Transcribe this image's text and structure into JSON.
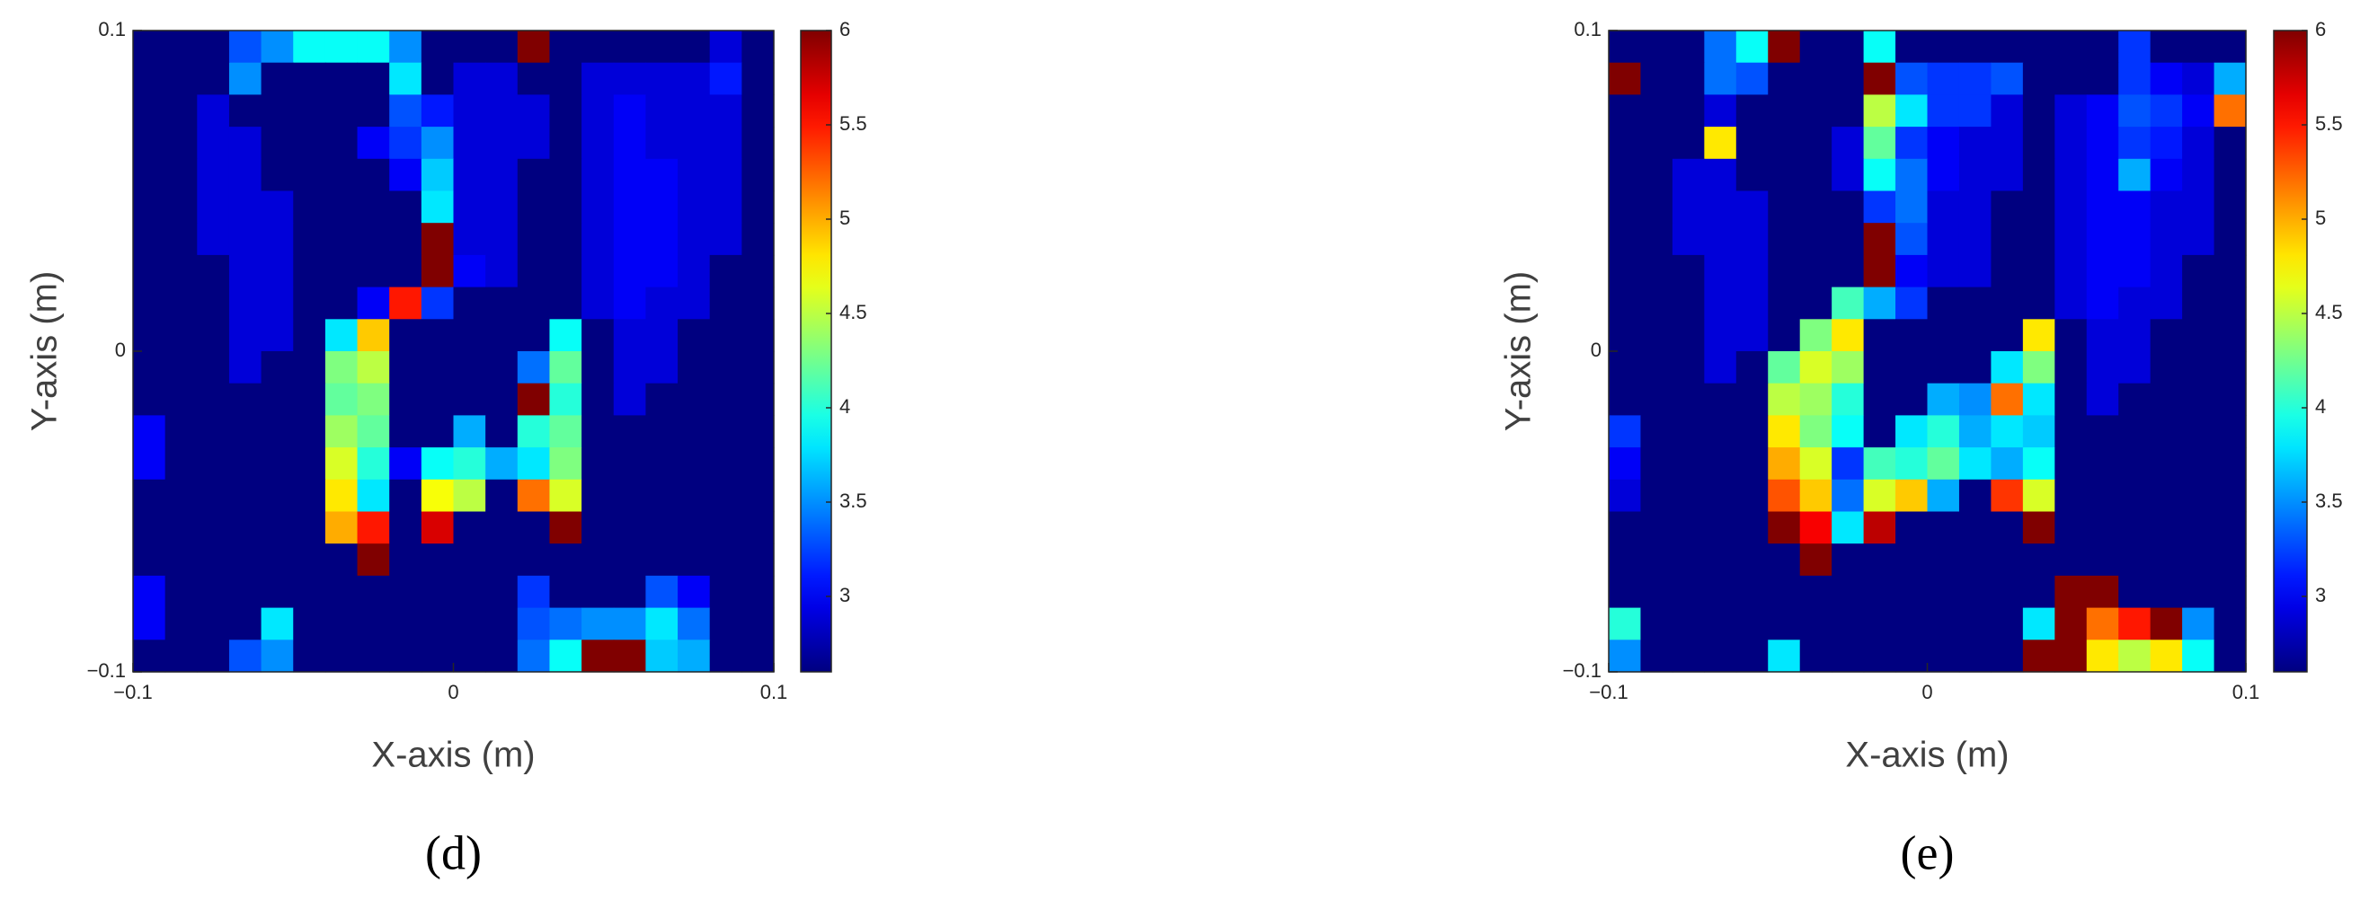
{
  "chart_data": [
    {
      "type": "heatmap",
      "caption": "(d)",
      "xlabel": "X-axis (m)",
      "ylabel": "Y-axis (m)",
      "xlim": [
        -0.1,
        0.1
      ],
      "ylim": [
        -0.1,
        0.1
      ],
      "xticks": [
        {
          "value": -0.1,
          "label": "−0.1"
        },
        0,
        0.1
      ],
      "yticks": [
        {
          "value": -0.1,
          "label": "−0.1"
        },
        0,
        0.1
      ],
      "colormap": "jet",
      "clim": [
        2.6,
        6
      ],
      "cticks": [
        3,
        3.5,
        4,
        4.5,
        5,
        5.5,
        6
      ],
      "z": [
        [
          2.6,
          2.6,
          2.6,
          3.3,
          3.5,
          3.9,
          3.9,
          3.9,
          3.5,
          2.6,
          2.6,
          2.6,
          6,
          2.6,
          2.6,
          2.6,
          2.6,
          2.6,
          2.9,
          2.6
        ],
        [
          2.6,
          2.6,
          2.6,
          3.5,
          2.6,
          2.6,
          2.6,
          2.6,
          3.8,
          2.6,
          2.9,
          2.9,
          2.6,
          2.6,
          2.9,
          2.9,
          2.9,
          2.9,
          3.1,
          2.6
        ],
        [
          2.6,
          2.6,
          2.9,
          2.6,
          2.6,
          2.6,
          2.6,
          2.6,
          3.3,
          3.1,
          2.9,
          2.9,
          2.9,
          2.6,
          2.9,
          3.0,
          2.9,
          2.9,
          2.9,
          2.6
        ],
        [
          2.6,
          2.6,
          2.9,
          2.9,
          2.6,
          2.6,
          2.6,
          3.0,
          3.2,
          3.5,
          2.9,
          2.9,
          2.9,
          2.6,
          2.9,
          3.0,
          2.9,
          2.9,
          2.9,
          2.6
        ],
        [
          2.6,
          2.6,
          2.9,
          2.9,
          2.6,
          2.6,
          2.6,
          2.6,
          3.0,
          3.7,
          2.9,
          2.9,
          2.6,
          2.6,
          2.9,
          3.0,
          3.0,
          2.9,
          2.9,
          2.6
        ],
        [
          2.6,
          2.6,
          2.9,
          2.9,
          2.9,
          2.6,
          2.6,
          2.6,
          2.6,
          3.8,
          2.9,
          2.9,
          2.6,
          2.6,
          2.9,
          3.0,
          3.0,
          2.9,
          2.9,
          2.6
        ],
        [
          2.6,
          2.6,
          2.9,
          2.9,
          2.9,
          2.6,
          2.6,
          2.6,
          2.6,
          6,
          2.9,
          2.9,
          2.6,
          2.6,
          2.9,
          3.0,
          3.0,
          2.9,
          2.9,
          2.6
        ],
        [
          2.6,
          2.6,
          2.6,
          2.9,
          2.9,
          2.6,
          2.6,
          2.6,
          2.6,
          6,
          3.0,
          2.9,
          2.6,
          2.6,
          2.9,
          3.0,
          3.0,
          2.9,
          2.6,
          2.6
        ],
        [
          2.6,
          2.6,
          2.6,
          2.9,
          2.9,
          2.6,
          2.6,
          3.0,
          5.5,
          3.2,
          2.6,
          2.6,
          2.6,
          2.6,
          2.9,
          3.0,
          2.9,
          2.9,
          2.6,
          2.6
        ],
        [
          2.6,
          2.6,
          2.6,
          2.9,
          2.9,
          2.6,
          3.8,
          4.9,
          2.6,
          2.6,
          2.6,
          2.6,
          2.6,
          3.9,
          2.6,
          2.9,
          2.9,
          2.6,
          2.6,
          2.6
        ],
        [
          2.6,
          2.6,
          2.6,
          2.9,
          2.6,
          2.6,
          4.3,
          4.5,
          2.6,
          2.6,
          2.6,
          2.6,
          3.4,
          4.2,
          2.6,
          2.9,
          2.9,
          2.6,
          2.6,
          2.6
        ],
        [
          2.6,
          2.6,
          2.6,
          2.6,
          2.6,
          2.6,
          4.2,
          4.3,
          2.6,
          2.6,
          2.6,
          2.6,
          6,
          4.0,
          2.6,
          2.9,
          2.6,
          2.6,
          2.6,
          2.6
        ],
        [
          3.0,
          2.6,
          2.6,
          2.6,
          2.6,
          2.6,
          4.4,
          4.2,
          2.6,
          2.6,
          3.6,
          2.6,
          4.0,
          4.2,
          2.6,
          2.6,
          2.6,
          2.6,
          2.6,
          2.6
        ],
        [
          3.0,
          2.6,
          2.6,
          2.6,
          2.6,
          2.6,
          4.6,
          4.0,
          3.0,
          3.9,
          4.0,
          3.6,
          3.8,
          4.3,
          2.6,
          2.6,
          2.6,
          2.6,
          2.6,
          2.6
        ],
        [
          2.6,
          2.6,
          2.6,
          2.6,
          2.6,
          2.6,
          4.8,
          3.8,
          2.6,
          4.7,
          4.5,
          2.6,
          5.2,
          4.6,
          2.6,
          2.6,
          2.6,
          2.6,
          2.6,
          2.6
        ],
        [
          2.6,
          2.6,
          2.6,
          2.6,
          2.6,
          2.6,
          5.0,
          5.5,
          2.6,
          5.7,
          2.6,
          2.6,
          2.6,
          6,
          2.6,
          2.6,
          2.6,
          2.6,
          2.6,
          2.6
        ],
        [
          2.6,
          2.6,
          2.6,
          2.6,
          2.6,
          2.6,
          2.6,
          6,
          2.6,
          2.6,
          2.6,
          2.6,
          2.6,
          2.6,
          2.6,
          2.6,
          2.6,
          2.6,
          2.6,
          2.6
        ],
        [
          3.0,
          2.6,
          2.6,
          2.6,
          2.6,
          2.6,
          2.6,
          2.6,
          2.6,
          2.6,
          2.6,
          2.6,
          3.2,
          2.6,
          2.6,
          2.6,
          3.3,
          3.0,
          2.6,
          2.6
        ],
        [
          3.0,
          2.6,
          2.6,
          2.6,
          3.8,
          2.6,
          2.6,
          2.6,
          2.6,
          2.6,
          2.6,
          2.6,
          3.3,
          3.4,
          3.5,
          3.5,
          3.8,
          3.4,
          2.6,
          2.6
        ],
        [
          2.6,
          2.6,
          2.6,
          3.3,
          3.5,
          2.6,
          2.6,
          2.6,
          2.6,
          2.6,
          2.6,
          2.6,
          3.4,
          3.9,
          6,
          6,
          3.7,
          3.6,
          2.6,
          2.6
        ]
      ]
    },
    {
      "type": "heatmap",
      "caption": "(e)",
      "xlabel": "X-axis (m)",
      "ylabel": "Y-axis (m)",
      "xlim": [
        -0.1,
        0.1
      ],
      "ylim": [
        -0.1,
        0.1
      ],
      "xticks": [
        {
          "value": -0.1,
          "label": "−0.1"
        },
        0,
        0.1
      ],
      "yticks": [
        {
          "value": -0.1,
          "label": "−0.1"
        },
        0,
        0.1
      ],
      "colormap": "jet",
      "clim": [
        2.6,
        6
      ],
      "cticks": [
        3,
        3.5,
        4,
        4.5,
        5,
        5.5,
        6
      ],
      "z": [
        [
          2.6,
          2.6,
          2.6,
          3.4,
          3.9,
          6,
          2.6,
          2.6,
          3.9,
          2.6,
          2.6,
          2.6,
          2.6,
          2.6,
          2.6,
          2.6,
          3.2,
          2.6,
          2.6,
          2.6
        ],
        [
          6,
          2.6,
          2.6,
          3.4,
          3.3,
          2.6,
          2.6,
          2.6,
          6,
          3.3,
          3.2,
          3.2,
          3.3,
          2.6,
          2.6,
          2.6,
          3.2,
          3.0,
          2.9,
          3.6
        ],
        [
          2.6,
          2.6,
          2.6,
          2.9,
          2.6,
          2.6,
          2.6,
          2.6,
          4.5,
          3.8,
          3.2,
          3.2,
          2.9,
          2.6,
          2.9,
          3.0,
          3.3,
          3.2,
          3.0,
          5.2
        ],
        [
          2.6,
          2.6,
          2.6,
          4.8,
          2.6,
          2.6,
          2.6,
          2.9,
          4.2,
          3.2,
          3.0,
          2.9,
          2.9,
          2.6,
          2.9,
          3.0,
          3.2,
          3.1,
          2.9,
          2.6
        ],
        [
          2.6,
          2.6,
          2.9,
          2.9,
          2.6,
          2.6,
          2.6,
          2.9,
          3.9,
          3.4,
          3.0,
          2.9,
          2.9,
          2.6,
          2.9,
          3.0,
          3.6,
          3.0,
          2.9,
          2.6
        ],
        [
          2.6,
          2.6,
          2.9,
          2.9,
          2.9,
          2.6,
          2.6,
          2.6,
          3.2,
          3.4,
          2.9,
          2.9,
          2.6,
          2.6,
          2.9,
          3.0,
          3.0,
          2.9,
          2.9,
          2.6
        ],
        [
          2.6,
          2.6,
          2.9,
          2.9,
          2.9,
          2.6,
          2.6,
          2.6,
          6,
          3.3,
          2.9,
          2.9,
          2.6,
          2.6,
          2.9,
          3.0,
          3.0,
          2.9,
          2.9,
          2.6
        ],
        [
          2.6,
          2.6,
          2.6,
          2.9,
          2.9,
          2.6,
          2.6,
          2.6,
          6,
          3.0,
          2.9,
          2.9,
          2.6,
          2.6,
          2.9,
          3.0,
          3.0,
          2.9,
          2.6,
          2.6
        ],
        [
          2.6,
          2.6,
          2.6,
          2.9,
          2.9,
          2.6,
          2.6,
          4.1,
          3.6,
          3.2,
          2.6,
          2.6,
          2.6,
          2.6,
          2.9,
          3.0,
          2.9,
          2.9,
          2.6,
          2.6
        ],
        [
          2.6,
          2.6,
          2.6,
          2.9,
          2.9,
          2.6,
          4.3,
          4.8,
          2.6,
          2.6,
          2.6,
          2.6,
          2.6,
          4.8,
          2.6,
          2.9,
          2.9,
          2.6,
          2.6,
          2.6
        ],
        [
          2.6,
          2.6,
          2.6,
          2.9,
          2.6,
          4.2,
          4.6,
          4.4,
          2.6,
          2.6,
          2.6,
          2.6,
          3.8,
          4.3,
          2.6,
          2.9,
          2.9,
          2.6,
          2.6,
          2.6
        ],
        [
          2.6,
          2.6,
          2.6,
          2.6,
          2.6,
          4.5,
          4.4,
          4.0,
          2.6,
          2.6,
          3.6,
          3.5,
          5.2,
          3.8,
          2.6,
          2.9,
          2.6,
          2.6,
          2.6,
          2.6
        ],
        [
          3.2,
          2.6,
          2.6,
          2.6,
          2.6,
          4.8,
          4.3,
          3.9,
          2.6,
          3.8,
          4.0,
          3.6,
          3.8,
          3.7,
          2.6,
          2.6,
          2.6,
          2.6,
          2.6,
          2.6
        ],
        [
          3.0,
          2.6,
          2.6,
          2.6,
          2.6,
          5.0,
          4.6,
          3.2,
          4.1,
          4.0,
          4.2,
          3.8,
          3.6,
          3.9,
          2.6,
          2.6,
          2.6,
          2.6,
          2.6,
          2.6
        ],
        [
          2.9,
          2.6,
          2.6,
          2.6,
          2.6,
          5.3,
          4.9,
          3.4,
          4.6,
          4.9,
          3.6,
          2.6,
          5.4,
          4.6,
          2.6,
          2.6,
          2.6,
          2.6,
          2.6,
          2.6
        ],
        [
          2.6,
          2.6,
          2.6,
          2.6,
          2.6,
          6,
          5.6,
          3.8,
          5.8,
          2.6,
          2.6,
          2.6,
          2.6,
          6,
          2.6,
          2.6,
          2.6,
          2.6,
          2.6,
          2.6
        ],
        [
          2.6,
          2.6,
          2.6,
          2.6,
          2.6,
          2.6,
          6,
          2.6,
          2.6,
          2.6,
          2.6,
          2.6,
          2.6,
          2.6,
          2.6,
          2.6,
          2.6,
          2.6,
          2.6,
          2.6
        ],
        [
          2.6,
          2.6,
          2.6,
          2.6,
          2.6,
          2.6,
          2.6,
          2.6,
          2.6,
          2.6,
          2.6,
          2.6,
          2.6,
          2.6,
          6,
          6,
          2.6,
          2.6,
          2.6,
          2.6
        ],
        [
          4.0,
          2.6,
          2.6,
          2.6,
          2.6,
          2.6,
          2.6,
          2.6,
          2.6,
          2.6,
          2.6,
          2.6,
          2.6,
          3.8,
          6,
          5.2,
          5.5,
          6,
          3.5,
          2.6
        ],
        [
          3.5,
          2.6,
          2.6,
          2.6,
          2.6,
          3.8,
          2.6,
          2.6,
          2.6,
          2.6,
          2.6,
          2.6,
          2.6,
          6,
          6,
          4.8,
          4.5,
          4.8,
          3.9,
          2.6
        ]
      ]
    }
  ]
}
